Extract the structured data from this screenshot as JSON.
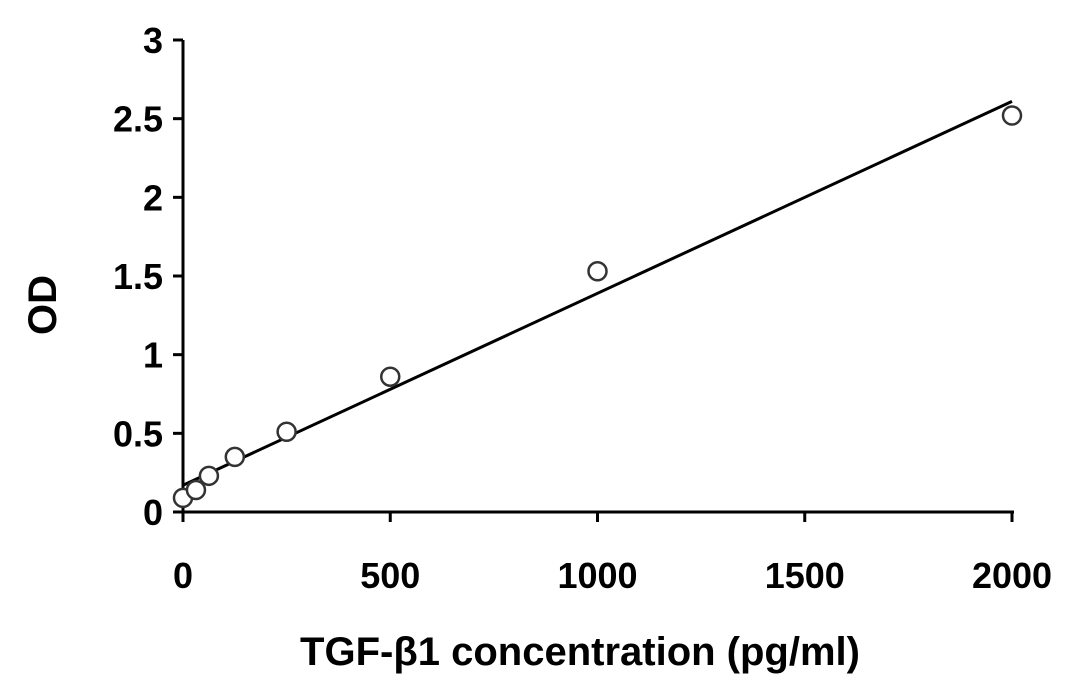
{
  "chart_data": {
    "type": "scatter",
    "title": "",
    "xlabel": "TGF-β1 concentration (pg/ml)",
    "ylabel": "OD",
    "xlim": [
      0,
      2000
    ],
    "ylim": [
      0,
      3
    ],
    "x_ticks": [
      0,
      500,
      1000,
      1500,
      2000
    ],
    "x_tick_labels": [
      "0",
      "500",
      "1000",
      "1500",
      "2000"
    ],
    "y_ticks": [
      0,
      0.5,
      1,
      1.5,
      2,
      2.5,
      3
    ],
    "y_tick_labels": [
      "0",
      "0.5",
      "1",
      "1.5",
      "2",
      "2.5",
      "3"
    ],
    "grid": false,
    "series": [
      {
        "marker": "open-circle",
        "x": [
          0,
          31.25,
          62.5,
          125,
          250,
          500,
          1000,
          2000
        ],
        "y": [
          0.09,
          0.14,
          0.23,
          0.35,
          0.51,
          0.86,
          1.53,
          2.52
        ]
      }
    ],
    "trendline": {
      "type": "linear",
      "x": [
        0,
        2000
      ],
      "y": [
        0.17,
        2.61
      ]
    }
  }
}
